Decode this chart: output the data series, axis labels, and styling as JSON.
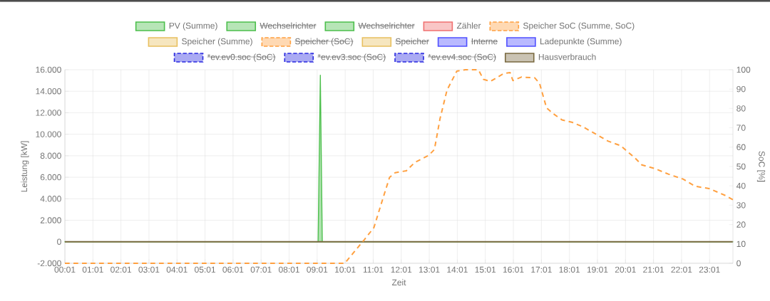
{
  "chart_data": {
    "type": "line",
    "xlabel": "Zeit",
    "ylabel": "Leistung [kW]",
    "y2label": "SoC [%]",
    "grid": true,
    "legend": "top",
    "xlim": [
      0.0167,
      23.85
    ],
    "xticks": [
      {
        "value": 0.0167,
        "label": "00:01"
      },
      {
        "value": 1.0167,
        "label": "01:01"
      },
      {
        "value": 2.0167,
        "label": "02:01"
      },
      {
        "value": 3.0167,
        "label": "03:01"
      },
      {
        "value": 4.0167,
        "label": "04:01"
      },
      {
        "value": 5.0167,
        "label": "05:01"
      },
      {
        "value": 6.0167,
        "label": "06:01"
      },
      {
        "value": 7.0167,
        "label": "07:01"
      },
      {
        "value": 8.0167,
        "label": "08:01"
      },
      {
        "value": 9.0167,
        "label": "09:01"
      },
      {
        "value": 10.0167,
        "label": "10:01"
      },
      {
        "value": 11.0167,
        "label": "11:01"
      },
      {
        "value": 12.0167,
        "label": "12:01"
      },
      {
        "value": 13.0167,
        "label": "13:01"
      },
      {
        "value": 14.0167,
        "label": "14:01"
      },
      {
        "value": 15.0167,
        "label": "15:01"
      },
      {
        "value": 16.0167,
        "label": "16:01"
      },
      {
        "value": 17.0167,
        "label": "17:01"
      },
      {
        "value": 18.0167,
        "label": "18:01"
      },
      {
        "value": 19.0167,
        "label": "19:01"
      },
      {
        "value": 20.0167,
        "label": "20:01"
      },
      {
        "value": 21.0167,
        "label": "21:01"
      },
      {
        "value": 22.0167,
        "label": "22:01"
      },
      {
        "value": 23.0167,
        "label": "23:01"
      }
    ],
    "ylim": [
      -2000,
      16000
    ],
    "yticks": [
      {
        "value": -2000,
        "label": "-2.000"
      },
      {
        "value": 0,
        "label": "0"
      },
      {
        "value": 2000,
        "label": "2.000"
      },
      {
        "value": 4000,
        "label": "4.000"
      },
      {
        "value": 6000,
        "label": "6.000"
      },
      {
        "value": 8000,
        "label": "8.000"
      },
      {
        "value": 10000,
        "label": "10.000"
      },
      {
        "value": 12000,
        "label": "12.000"
      },
      {
        "value": 14000,
        "label": "14.000"
      },
      {
        "value": 16000,
        "label": "16.000"
      }
    ],
    "y2lim": [
      0,
      100
    ],
    "y2ticks": [
      0,
      10,
      20,
      30,
      40,
      50,
      60,
      70,
      80,
      90,
      100
    ],
    "series": [
      {
        "name": "PV (Summe)",
        "type": "area",
        "color": "#4cbf4c",
        "x": [
          0.0167,
          9.05,
          9.13,
          9.2,
          23.85
        ],
        "values": [
          0,
          0,
          15500,
          0,
          0
        ]
      },
      {
        "name": "Wechselrichter",
        "color": "#4cbf4c"
      },
      {
        "name": "Wechselrichter",
        "color": "#4cbf4c"
      },
      {
        "name": "Zähler",
        "color": "#f07070",
        "values": [
          null
        ]
      },
      {
        "name": "Speicher SoC (Summe, SoC)",
        "color": "#ffa040",
        "line_style": "dashed",
        "axis": "y2",
        "x": [
          0.0167,
          10.0,
          10.7,
          11.04,
          11.38,
          11.6,
          11.8,
          12.2,
          12.5,
          13.0,
          13.2,
          13.4,
          13.65,
          14.0,
          14.3,
          14.77,
          14.95,
          15.2,
          15.67,
          15.9,
          16.0,
          16.3,
          16.78,
          16.95,
          17.2,
          17.45,
          17.75,
          18.1,
          18.5,
          18.95,
          19.4,
          19.85,
          20.0,
          20.35,
          20.6,
          21.05,
          21.56,
          22.07,
          22.5,
          23.0,
          23.6,
          23.85
        ],
        "values": [
          0,
          0,
          12.2,
          18.4,
          34.3,
          44.4,
          46.8,
          47.8,
          52.1,
          55.8,
          58.8,
          74.7,
          89.5,
          99.3,
          100,
          100,
          95,
          94,
          98,
          98.5,
          94.4,
          96.2,
          95.8,
          93,
          80.3,
          77.2,
          74.1,
          72.9,
          70.5,
          66.8,
          63.1,
          60.7,
          58.8,
          54.5,
          50.8,
          49,
          46,
          43.5,
          39.8,
          38.6,
          34.9,
          32.8
        ]
      },
      {
        "name": "Speicher (Summe)",
        "color": "#e8c060",
        "values": [
          null
        ]
      },
      {
        "name": "Speicher (SoC)",
        "color": "#ffa040",
        "line_style": "dashed"
      },
      {
        "name": "Speicher",
        "color": "#e8c060"
      },
      {
        "name": "Interne",
        "color": "#5050ff"
      },
      {
        "name": "Ladepunkte (Summe)",
        "color": "#5050ff",
        "values": [
          null
        ]
      },
      {
        "name": "*ev.ev0.soc (SoC)",
        "color": "#2a2ae0",
        "line_style": "dashed"
      },
      {
        "name": "*ev.ev3.soc (SoC)",
        "color": "#2a2ae0",
        "line_style": "dashed"
      },
      {
        "name": "*ev.ev4.soc (SoC)",
        "color": "#2a2ae0",
        "line_style": "dashed"
      },
      {
        "name": "Hausverbrauch",
        "color": "#7a6a40",
        "x": [
          0.0167,
          23.85
        ],
        "values": [
          0,
          0
        ]
      }
    ]
  }
}
